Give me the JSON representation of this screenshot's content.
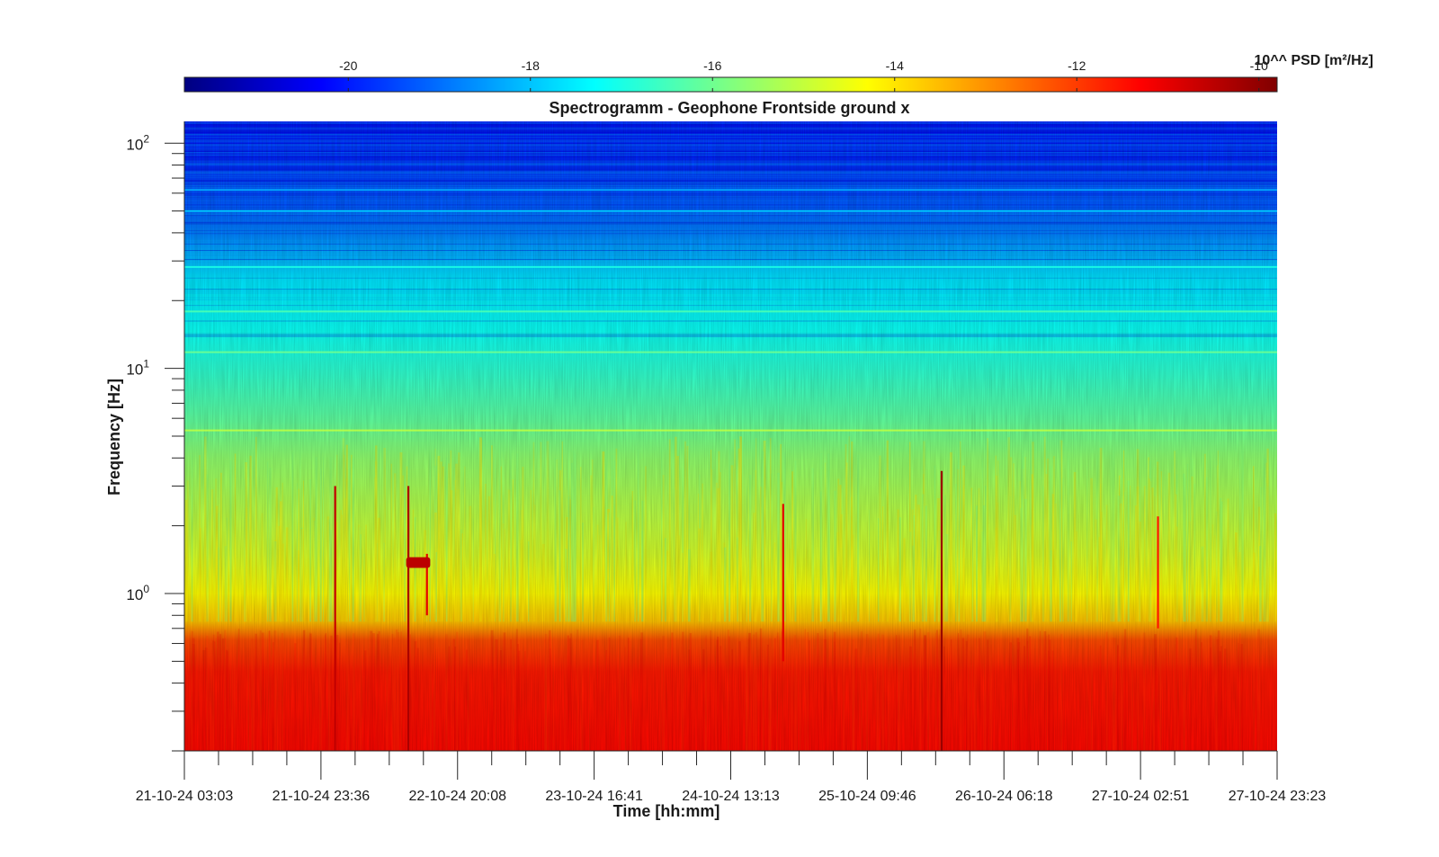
{
  "chart_data": {
    "type": "heatmap",
    "title": "Spectrogramm - Geophone Frontside ground x",
    "xlabel": "Time [hh:mm]",
    "ylabel": "Frequency [Hz]",
    "y_scale": "log",
    "ylim": [
      0.2,
      125
    ],
    "y_ticks": [
      {
        "value": 1,
        "base": "10",
        "exp": "0"
      },
      {
        "value": 10,
        "base": "10",
        "exp": "1"
      },
      {
        "value": 100,
        "base": "10",
        "exp": "2"
      }
    ],
    "x_tick_labels": [
      "21-10-24 03:03",
      "21-10-24 23:36",
      "22-10-24 20:08",
      "23-10-24 16:41",
      "24-10-24 13:13",
      "25-10-24 09:46",
      "26-10-24 06:18",
      "27-10-24 02:51",
      "27-10-24 23:23"
    ],
    "minor_x_ticks_per_interval": 3,
    "colorbar": {
      "label": "10^^ PSD [m²/Hz]",
      "colormap": "jet",
      "clim": [
        -21.8,
        -9.8
      ],
      "ticks": [
        "-20",
        "-18",
        "-16",
        "-14",
        "-12",
        "-10"
      ],
      "tick_values": [
        -20,
        -18,
        -16,
        -14,
        -12,
        -10
      ]
    },
    "profile": [
      {
        "freq_hz": 0.2,
        "log10_psd": -11.4
      },
      {
        "freq_hz": 0.45,
        "log10_psd": -11.6
      },
      {
        "freq_hz": 0.62,
        "log10_psd": -12.2
      },
      {
        "freq_hz": 0.75,
        "log10_psd": -13.6
      },
      {
        "freq_hz": 1.0,
        "log10_psd": -14.3
      },
      {
        "freq_hz": 1.5,
        "log10_psd": -14.8
      },
      {
        "freq_hz": 2.5,
        "log10_psd": -15.2
      },
      {
        "freq_hz": 4.0,
        "log10_psd": -15.6
      },
      {
        "freq_hz": 6.0,
        "log10_psd": -16.2
      },
      {
        "freq_hz": 10.0,
        "log10_psd": -16.8
      },
      {
        "freq_hz": 15.0,
        "log10_psd": -17.2
      },
      {
        "freq_hz": 25.0,
        "log10_psd": -17.6
      },
      {
        "freq_hz": 40.0,
        "log10_psd": -18.8
      },
      {
        "freq_hz": 60.0,
        "log10_psd": -19.4
      },
      {
        "freq_hz": 100.0,
        "log10_psd": -19.9
      },
      {
        "freq_hz": 125.0,
        "log10_psd": -20.2
      }
    ],
    "spectral_lines": [
      {
        "freq_hz": 5.3,
        "log10_psd": -15.1
      },
      {
        "freq_hz": 11.8,
        "log10_psd": -16.0
      },
      {
        "freq_hz": 17.9,
        "log10_psd": -16.4
      },
      {
        "freq_hz": 28.2,
        "log10_psd": -17.0
      },
      {
        "freq_hz": 50.0,
        "log10_psd": -17.8
      },
      {
        "freq_hz": 62.0,
        "log10_psd": -18.2
      }
    ],
    "transient_events": [
      {
        "time_frac": 0.138,
        "f_min_hz": 0.2,
        "f_max_hz": 3.0,
        "log10_psd": -10.6
      },
      {
        "time_frac": 0.205,
        "f_min_hz": 0.2,
        "f_max_hz": 3.0,
        "log10_psd": -10.3
      },
      {
        "time_frac": 0.222,
        "f_min_hz": 0.8,
        "f_max_hz": 1.5,
        "log10_psd": -11.0
      },
      {
        "time_frac": 0.548,
        "f_min_hz": 0.5,
        "f_max_hz": 2.5,
        "log10_psd": -11.0
      },
      {
        "time_frac": 0.693,
        "f_min_hz": 0.2,
        "f_max_hz": 3.5,
        "log10_psd": -10.1
      },
      {
        "time_frac": 0.891,
        "f_min_hz": 0.7,
        "f_max_hz": 2.2,
        "log10_psd": -11.6
      }
    ],
    "narrowband_bursts": [
      {
        "t_start_frac": 0.203,
        "t_end_frac": 0.225,
        "f_low_hz": 1.3,
        "f_high_hz": 1.45,
        "log10_psd": -10.5
      }
    ]
  }
}
